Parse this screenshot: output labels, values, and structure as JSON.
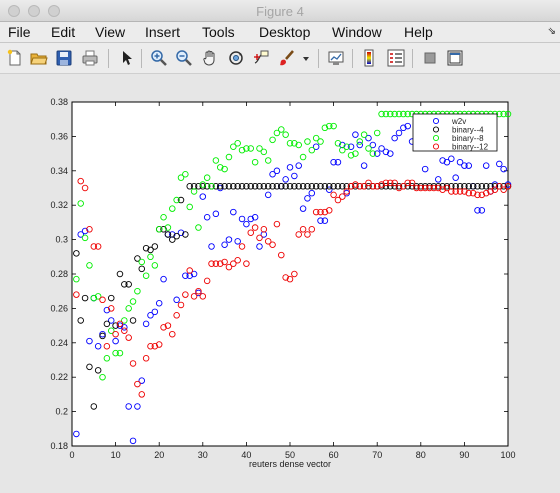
{
  "window": {
    "title": "Figure 4"
  },
  "menu": [
    "File",
    "Edit",
    "View",
    "Insert",
    "Tools",
    "Desktop",
    "Window",
    "Help"
  ],
  "toolbar": [
    {
      "name": "new-figure-icon"
    },
    {
      "name": "open-file-icon"
    },
    {
      "name": "save-icon"
    },
    {
      "name": "print-icon"
    },
    {
      "name": "edit-plot-arrow-icon"
    },
    {
      "name": "zoom-in-icon"
    },
    {
      "name": "zoom-out-icon"
    },
    {
      "name": "pan-hand-icon"
    },
    {
      "name": "rotate-3d-icon"
    },
    {
      "name": "data-cursor-icon"
    },
    {
      "name": "brush-icon"
    },
    {
      "name": "brush-dropdown-icon"
    },
    {
      "name": "link-plot-icon"
    },
    {
      "name": "colorbar-icon"
    },
    {
      "name": "legend-icon"
    },
    {
      "name": "hide-plot-tools-icon"
    },
    {
      "name": "show-plot-tools-icon"
    }
  ],
  "chart_data": {
    "type": "scatter",
    "xlabel": "reuters dense vector",
    "ylabel": "",
    "xlim": [
      0,
      100
    ],
    "ylim": [
      0.18,
      0.38
    ],
    "xticks": [
      0,
      10,
      20,
      30,
      40,
      50,
      60,
      70,
      80,
      90,
      100
    ],
    "xtick_labels": [
      "0",
      "10",
      "20",
      "30",
      "40",
      "50",
      "60",
      "70",
      "80",
      "90",
      "100"
    ],
    "yticks": [
      0.18,
      0.2,
      0.22,
      0.24,
      0.26,
      0.28,
      0.3,
      0.32,
      0.34,
      0.36,
      0.38
    ],
    "ytick_labels": [
      "0.18",
      "0.2",
      "0.22",
      "0.24",
      "0.26",
      "0.28",
      "0.3",
      "0.32",
      "0.34",
      "0.36",
      "0.38"
    ],
    "grid": false,
    "legend_position": "top-right",
    "marker": "circle-open",
    "series": [
      {
        "name": "w2v",
        "color": "#0000ff",
        "x": [
          1,
          2,
          3,
          4,
          5,
          6,
          7,
          8,
          9,
          10,
          11,
          12,
          13,
          14,
          15,
          16,
          17,
          18,
          19,
          20,
          21,
          22,
          23,
          24,
          25,
          26,
          27,
          28,
          29,
          30,
          31,
          32,
          33,
          34,
          35,
          36,
          37,
          38,
          39,
          40,
          41,
          42,
          43,
          44,
          45,
          46,
          47,
          48,
          49,
          50,
          51,
          52,
          53,
          54,
          55,
          56,
          57,
          58,
          59,
          60,
          61,
          62,
          63,
          64,
          65,
          66,
          67,
          68,
          69,
          70,
          71,
          72,
          73,
          74,
          75,
          76,
          77,
          78,
          79,
          80,
          81,
          82,
          83,
          84,
          85,
          86,
          87,
          88,
          89,
          90,
          91,
          92,
          93,
          94,
          95,
          96,
          97,
          98,
          99,
          100
        ],
        "y": [
          0.187,
          0.303,
          0.305,
          0.241,
          0.266,
          0.238,
          0.245,
          0.259,
          0.253,
          0.241,
          0.25,
          0.249,
          0.203,
          0.183,
          0.203,
          0.218,
          0.251,
          0.256,
          0.258,
          0.263,
          0.277,
          0.303,
          0.303,
          0.265,
          0.304,
          0.279,
          0.279,
          0.28,
          0.269,
          0.325,
          0.313,
          0.296,
          0.315,
          0.33,
          0.297,
          0.3,
          0.316,
          0.299,
          0.312,
          0.309,
          0.312,
          0.313,
          0.296,
          0.303,
          0.326,
          0.338,
          0.34,
          0.331,
          0.335,
          0.342,
          0.337,
          0.343,
          0.318,
          0.324,
          0.327,
          0.354,
          0.311,
          0.311,
          0.329,
          0.345,
          0.345,
          0.355,
          0.327,
          0.354,
          0.361,
          0.355,
          0.343,
          0.359,
          0.355,
          0.35,
          0.353,
          0.351,
          0.35,
          0.359,
          0.362,
          0.365,
          0.366,
          0.357,
          0.366,
          0.362,
          0.341,
          0.364,
          0.369,
          0.335,
          0.346,
          0.345,
          0.347,
          0.336,
          0.345,
          0.343,
          0.343,
          0.331,
          0.317,
          0.317,
          0.343,
          0.328,
          0.332,
          0.344,
          0.341,
          0.332
        ]
      },
      {
        "name": "binary--4",
        "color": "#000000",
        "x": [
          1,
          2,
          3,
          4,
          5,
          6,
          7,
          8,
          9,
          10,
          11,
          12,
          13,
          14,
          15,
          16,
          17,
          18,
          19,
          20,
          21,
          22,
          23,
          24,
          25,
          26,
          27,
          28,
          29,
          30,
          31,
          32,
          33,
          34,
          35,
          36,
          37,
          38,
          39,
          40,
          41,
          42,
          43,
          44,
          45,
          46,
          47,
          48,
          49,
          50,
          51,
          52,
          53,
          54,
          55,
          56,
          57,
          58,
          59,
          60,
          61,
          62,
          63,
          64,
          65,
          66,
          67,
          68,
          69,
          70,
          71,
          72,
          73,
          74,
          75,
          76,
          77,
          78,
          79,
          80,
          81,
          82,
          83,
          84,
          85,
          86,
          87,
          88,
          89,
          90,
          91,
          92,
          93,
          94,
          95,
          96,
          97,
          98,
          99,
          100
        ],
        "y": [
          0.292,
          0.253,
          0.266,
          0.226,
          0.203,
          0.224,
          0.244,
          0.251,
          0.266,
          0.25,
          0.28,
          0.274,
          0.274,
          0.253,
          0.289,
          0.283,
          0.295,
          0.294,
          0.296,
          0.306,
          0.306,
          0.303,
          0.3,
          0.302,
          0.323,
          0.303,
          0.331,
          0.331,
          0.331,
          0.331,
          0.331,
          0.331,
          0.331,
          0.331,
          0.331,
          0.331,
          0.331,
          0.331,
          0.331,
          0.331,
          0.331,
          0.331,
          0.331,
          0.331,
          0.331,
          0.331,
          0.331,
          0.331,
          0.331,
          0.331,
          0.331,
          0.331,
          0.331,
          0.331,
          0.331,
          0.331,
          0.331,
          0.331,
          0.331,
          0.331,
          0.331,
          0.331,
          0.331,
          0.331,
          0.331,
          0.331,
          0.331,
          0.331,
          0.331,
          0.331,
          0.331,
          0.331,
          0.331,
          0.331,
          0.331,
          0.331,
          0.331,
          0.331,
          0.331,
          0.331,
          0.331,
          0.331,
          0.331,
          0.331,
          0.331,
          0.331,
          0.331,
          0.331,
          0.331,
          0.331,
          0.331,
          0.331,
          0.331,
          0.331,
          0.331,
          0.331,
          0.331,
          0.331,
          0.331,
          0.331
        ]
      },
      {
        "name": "binary--8",
        "color": "#00ee00",
        "x": [
          1,
          2,
          3,
          4,
          5,
          6,
          7,
          8,
          9,
          10,
          11,
          12,
          13,
          14,
          15,
          16,
          17,
          18,
          19,
          20,
          21,
          22,
          23,
          24,
          25,
          26,
          27,
          28,
          29,
          30,
          31,
          32,
          33,
          34,
          35,
          36,
          37,
          38,
          39,
          40,
          41,
          42,
          43,
          44,
          45,
          46,
          47,
          48,
          49,
          50,
          51,
          52,
          53,
          54,
          55,
          56,
          57,
          58,
          59,
          60,
          61,
          62,
          63,
          64,
          65,
          66,
          67,
          68,
          69,
          70,
          71,
          72,
          73,
          74,
          75,
          76,
          77,
          78,
          79,
          80,
          81,
          82,
          83,
          84,
          85,
          86,
          87,
          88,
          89,
          90,
          91,
          92,
          93,
          94,
          95,
          96,
          97,
          98,
          99,
          100
        ],
        "y": [
          0.277,
          0.321,
          0.301,
          0.285,
          0.266,
          0.267,
          0.22,
          0.231,
          0.247,
          0.234,
          0.234,
          0.253,
          0.26,
          0.264,
          0.27,
          0.287,
          0.279,
          0.29,
          0.285,
          0.306,
          0.313,
          0.307,
          0.318,
          0.323,
          0.336,
          0.338,
          0.319,
          0.328,
          0.307,
          0.332,
          0.336,
          0.331,
          0.346,
          0.342,
          0.341,
          0.348,
          0.354,
          0.356,
          0.352,
          0.353,
          0.353,
          0.345,
          0.353,
          0.351,
          0.346,
          0.358,
          0.362,
          0.364,
          0.361,
          0.356,
          0.356,
          0.355,
          0.348,
          0.357,
          0.352,
          0.359,
          0.357,
          0.365,
          0.366,
          0.366,
          0.356,
          0.352,
          0.354,
          0.349,
          0.35,
          0.357,
          0.361,
          0.353,
          0.35,
          0.362,
          0.373,
          0.373,
          0.373,
          0.373,
          0.373,
          0.373,
          0.373,
          0.373,
          0.373,
          0.373,
          0.373,
          0.373,
          0.373,
          0.373,
          0.373,
          0.373,
          0.373,
          0.373,
          0.373,
          0.373,
          0.373,
          0.373,
          0.373,
          0.373,
          0.373,
          0.373,
          0.373,
          0.373,
          0.373,
          0.373
        ]
      },
      {
        "name": "binary--12",
        "color": "#ee0000",
        "x": [
          1,
          2,
          3,
          4,
          5,
          6,
          7,
          8,
          9,
          10,
          11,
          12,
          13,
          14,
          15,
          16,
          17,
          18,
          19,
          20,
          21,
          22,
          23,
          24,
          25,
          26,
          27,
          28,
          29,
          30,
          31,
          32,
          33,
          34,
          35,
          36,
          37,
          38,
          39,
          40,
          41,
          42,
          43,
          44,
          45,
          46,
          47,
          48,
          49,
          50,
          51,
          52,
          53,
          54,
          55,
          56,
          57,
          58,
          59,
          60,
          61,
          62,
          63,
          64,
          65,
          66,
          67,
          68,
          69,
          70,
          71,
          72,
          73,
          74,
          75,
          76,
          77,
          78,
          79,
          80,
          81,
          82,
          83,
          84,
          85,
          86,
          87,
          88,
          89,
          90,
          91,
          92,
          93,
          94,
          95,
          96,
          97,
          98,
          99,
          100
        ],
        "y": [
          0.268,
          0.334,
          0.33,
          0.306,
          0.296,
          0.296,
          0.265,
          0.238,
          0.26,
          0.245,
          0.251,
          0.247,
          0.243,
          0.228,
          0.216,
          0.21,
          0.231,
          0.238,
          0.238,
          0.239,
          0.249,
          0.25,
          0.245,
          0.256,
          0.262,
          0.268,
          0.282,
          0.267,
          0.27,
          0.267,
          0.276,
          0.286,
          0.286,
          0.286,
          0.287,
          0.284,
          0.286,
          0.288,
          0.296,
          0.286,
          0.304,
          0.307,
          0.301,
          0.306,
          0.299,
          0.297,
          0.309,
          0.291,
          0.278,
          0.277,
          0.28,
          0.303,
          0.306,
          0.303,
          0.306,
          0.316,
          0.316,
          0.316,
          0.317,
          0.326,
          0.323,
          0.325,
          0.328,
          0.331,
          0.332,
          0.331,
          0.331,
          0.333,
          0.331,
          0.331,
          0.332,
          0.333,
          0.333,
          0.333,
          0.33,
          0.331,
          0.333,
          0.333,
          0.33,
          0.33,
          0.33,
          0.33,
          0.33,
          0.33,
          0.329,
          0.33,
          0.328,
          0.328,
          0.328,
          0.328,
          0.327,
          0.327,
          0.326,
          0.326,
          0.327,
          0.328,
          0.329,
          0.331,
          0.329,
          0.331
        ]
      }
    ]
  }
}
